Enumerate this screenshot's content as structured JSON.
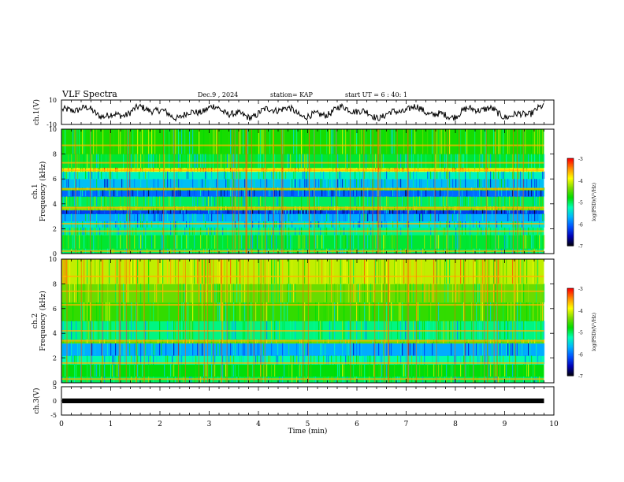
{
  "header": {
    "title": "VLF Spectra",
    "date": "Dec.9 , 2024",
    "station": "station= KAP",
    "start": "start UT = 6 : 40: 1"
  },
  "chart_data": [
    {
      "type": "line",
      "panel": "ch1-waveform",
      "ylabel": "ch.1(V)",
      "ylim": [
        -10,
        10
      ],
      "yticks": [
        "10",
        "-10"
      ],
      "xlim": [
        0,
        10
      ],
      "x_end": 9.8,
      "description_values": "noisy waveform between about -6 and 7 V"
    },
    {
      "type": "heatmap",
      "panel": "ch1-spectrogram",
      "ylabel": "ch.1\nFrequency (kHz)",
      "ylim": [
        0,
        10
      ],
      "yticks": [
        "0",
        "2",
        "4",
        "6",
        "8",
        "10"
      ],
      "xlim": [
        0,
        9.8
      ],
      "colorbar": {
        "label": "log(PSD)(V²/Hz)",
        "min": -7,
        "max": -3,
        "ticks": [
          "-3",
          "-4",
          "-5",
          "-6",
          "-7"
        ]
      },
      "bands": [
        {
          "f": [
            0.0,
            0.4
          ],
          "level": -5.0
        },
        {
          "f": [
            0.4,
            1.5
          ],
          "level": -4.9
        },
        {
          "f": [
            1.5,
            2.1
          ],
          "level": -5.1
        },
        {
          "f": [
            2.1,
            2.6
          ],
          "level": -5.4
        },
        {
          "f": [
            2.6,
            3.2
          ],
          "level": -5.7
        },
        {
          "f": [
            3.2,
            3.5
          ],
          "level": -6.2
        },
        {
          "f": [
            3.5,
            3.8
          ],
          "level": -4.3
        },
        {
          "f": [
            3.8,
            4.6
          ],
          "level": -5.0
        },
        {
          "f": [
            4.6,
            5.1
          ],
          "level": -6.0
        },
        {
          "f": [
            5.1,
            5.3
          ],
          "level": -4.5
        },
        {
          "f": [
            5.3,
            6.0
          ],
          "level": -5.6
        },
        {
          "f": [
            6.0,
            6.6
          ],
          "level": -5.3
        },
        {
          "f": [
            6.6,
            6.9
          ],
          "level": -3.9
        },
        {
          "f": [
            6.9,
            8.0
          ],
          "level": -4.9
        },
        {
          "f": [
            8.0,
            10.0
          ],
          "level": -4.7
        }
      ],
      "lines_khz": [
        0.2,
        1.8,
        2.4,
        3.7,
        5.2,
        6.7,
        7.3,
        8.7
      ]
    },
    {
      "type": "heatmap",
      "panel": "ch2-spectrogram",
      "ylabel": "ch.2\nFrequency (kHz)",
      "ylim": [
        0,
        10
      ],
      "yticks": [
        "0",
        "2",
        "4",
        "6",
        "8",
        "10"
      ],
      "xlim": [
        0,
        9.8
      ],
      "colorbar": {
        "label": "log(PSD)(V²/Hz)",
        "min": -7,
        "max": -3,
        "ticks": [
          "-3",
          "-4",
          "-5",
          "-6",
          "-7"
        ]
      },
      "bands": [
        {
          "f": [
            0.0,
            0.5
          ],
          "level": -5.0
        },
        {
          "f": [
            0.5,
            1.5
          ],
          "level": -4.8
        },
        {
          "f": [
            1.5,
            2.2
          ],
          "level": -5.2
        },
        {
          "f": [
            2.2,
            3.2
          ],
          "level": -5.7
        },
        {
          "f": [
            3.2,
            3.5
          ],
          "level": -4.4
        },
        {
          "f": [
            3.5,
            5.0
          ],
          "level": -5.1
        },
        {
          "f": [
            5.0,
            6.5
          ],
          "level": -4.6
        },
        {
          "f": [
            6.5,
            8.0
          ],
          "level": -4.4
        },
        {
          "f": [
            8.0,
            10.0
          ],
          "level": -4.1
        }
      ],
      "lines_khz": [
        0.3,
        1.6,
        3.4,
        4.2,
        6.3,
        7.4,
        8.6
      ]
    },
    {
      "type": "line",
      "panel": "ch3-waveform",
      "ylabel": "ch.3(V)",
      "ylim": [
        -5,
        5
      ],
      "yticks": [
        "5",
        "0",
        "-5"
      ],
      "xlim": [
        0,
        10
      ],
      "x_end": 9.8,
      "values_constant": 0,
      "xlabel": "Time (min)",
      "xticks": [
        "0",
        "1",
        "2",
        "3",
        "4",
        "5",
        "6",
        "7",
        "8",
        "9",
        "10"
      ]
    }
  ],
  "colors": {
    "scale": [
      "#000000",
      "#0000b4",
      "#0050ff",
      "#00b4ff",
      "#00ffb4",
      "#00dc00",
      "#7ddc00",
      "#ffff00",
      "#ff8c00",
      "#ff0000",
      "#ffffff"
    ]
  }
}
